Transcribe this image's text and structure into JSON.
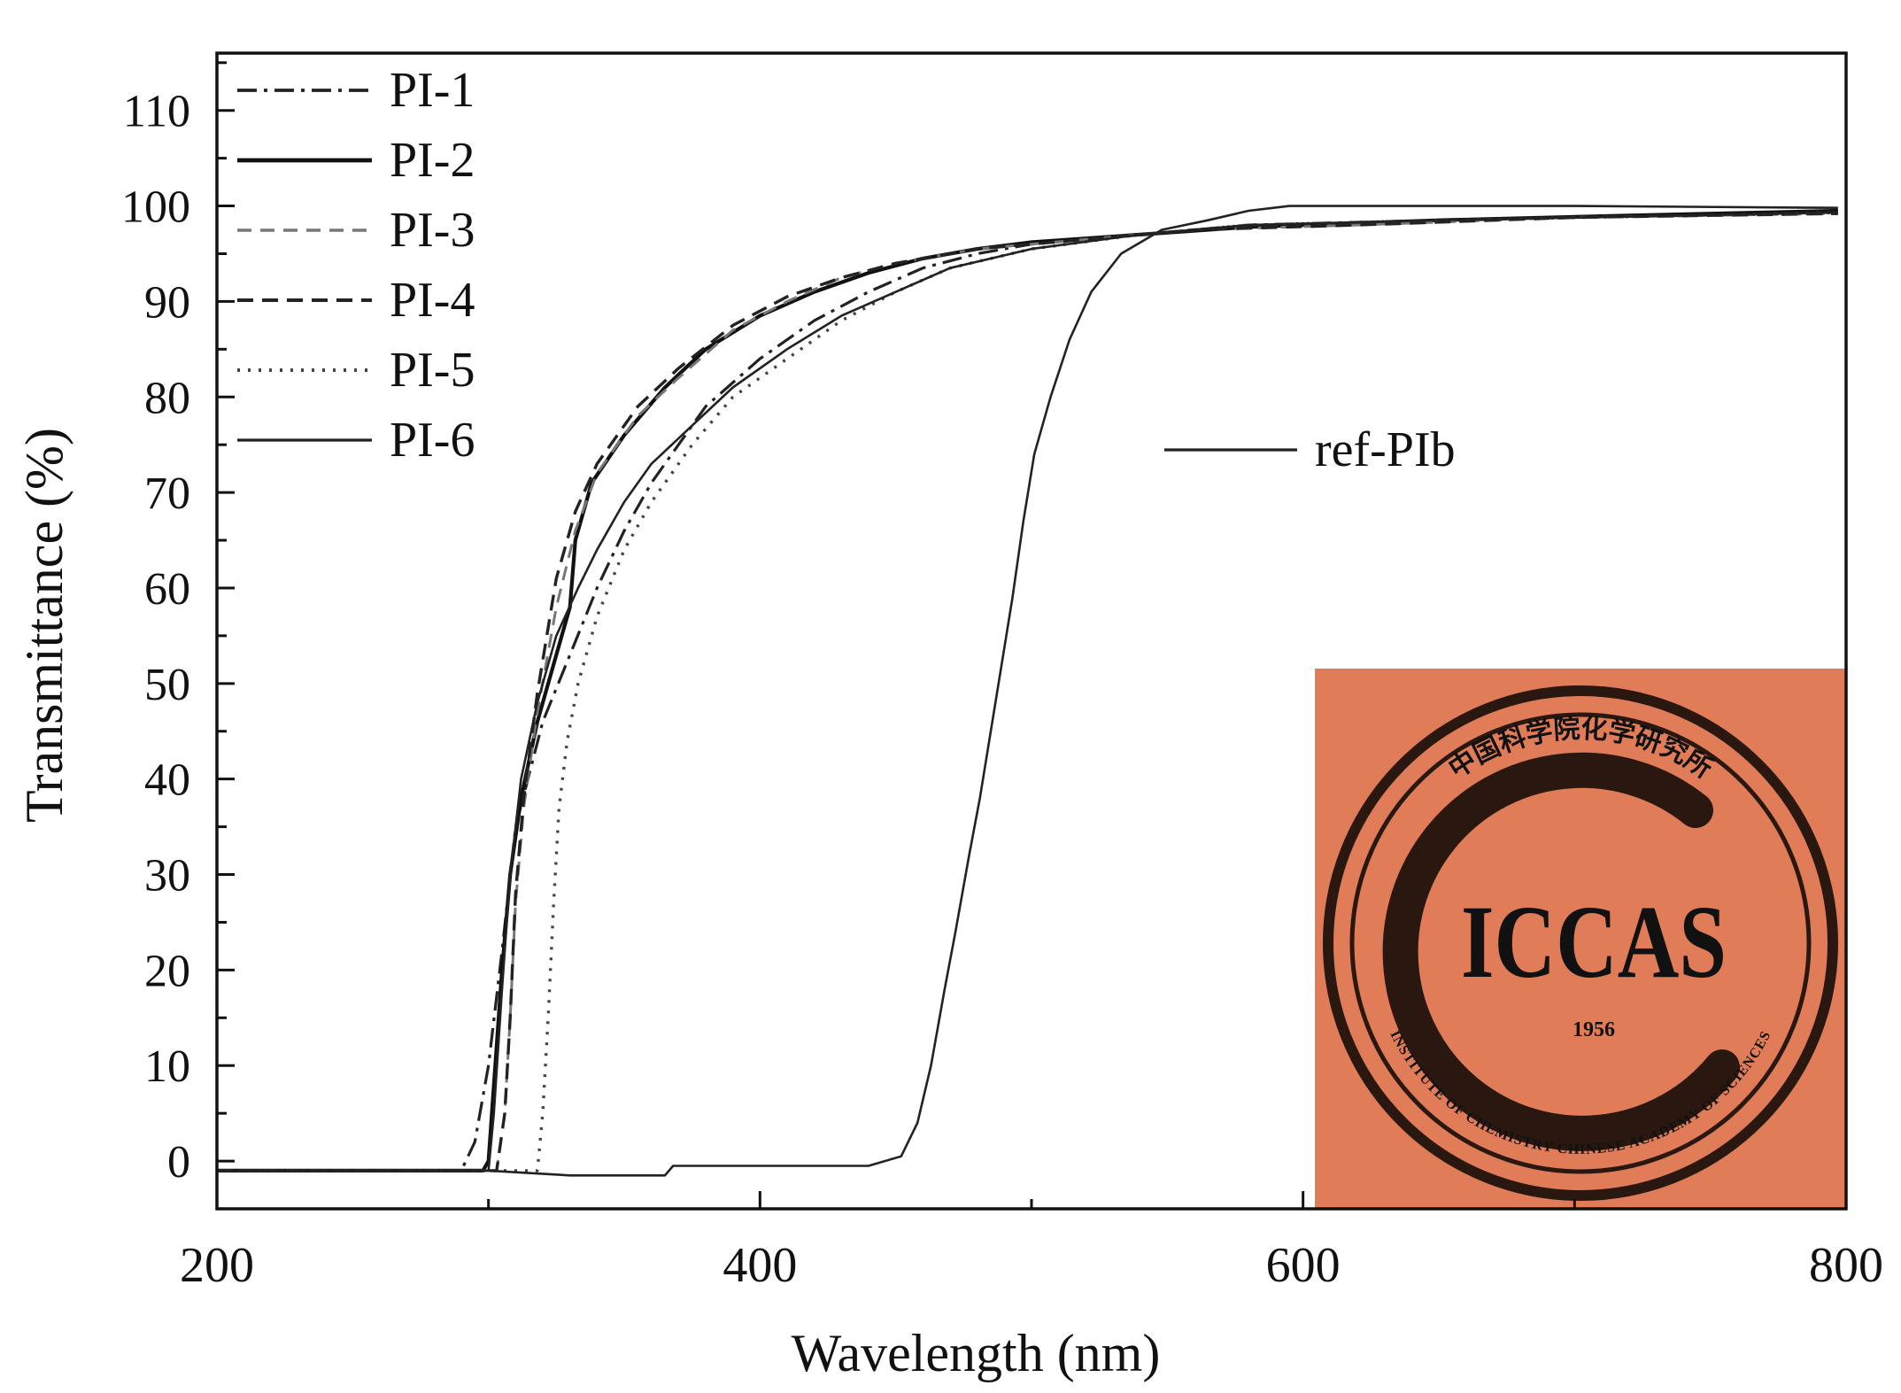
{
  "chart_data": {
    "type": "line",
    "xlabel": "Wavelength (nm)",
    "ylabel": "Transmittance (%)",
    "xlim": [
      200,
      800
    ],
    "ylim": [
      -5,
      116
    ],
    "x_ticks": [
      200,
      400,
      600,
      800
    ],
    "y_ticks": [
      0,
      10,
      20,
      30,
      40,
      50,
      60,
      70,
      80,
      90,
      100,
      110
    ],
    "grid": false,
    "legend_position": "top-left",
    "series": [
      {
        "name": "PI-1",
        "dash": "dashdot",
        "points": [
          [
            200,
            -1
          ],
          [
            290,
            -1
          ],
          [
            295,
            2
          ],
          [
            300,
            10
          ],
          [
            305,
            22
          ],
          [
            310,
            35
          ],
          [
            320,
            46
          ],
          [
            330,
            53
          ],
          [
            340,
            60
          ],
          [
            350,
            66
          ],
          [
            360,
            71
          ],
          [
            370,
            75
          ],
          [
            380,
            79
          ],
          [
            400,
            84
          ],
          [
            420,
            88
          ],
          [
            440,
            91
          ],
          [
            460,
            93.5
          ],
          [
            480,
            95
          ],
          [
            500,
            96
          ],
          [
            540,
            97
          ],
          [
            580,
            98
          ],
          [
            650,
            98.5
          ],
          [
            720,
            99
          ],
          [
            797,
            99.5
          ]
        ]
      },
      {
        "name": "PI-2",
        "dash": "solid",
        "points": [
          [
            200,
            -1
          ],
          [
            298,
            -1
          ],
          [
            300,
            0
          ],
          [
            302,
            8
          ],
          [
            305,
            20
          ],
          [
            308,
            30
          ],
          [
            312,
            38
          ],
          [
            318,
            46
          ],
          [
            325,
            53
          ],
          [
            330,
            58
          ],
          [
            332,
            65
          ],
          [
            338,
            71
          ],
          [
            350,
            76
          ],
          [
            365,
            81
          ],
          [
            380,
            85
          ],
          [
            400,
            88.5
          ],
          [
            420,
            91
          ],
          [
            440,
            93
          ],
          [
            460,
            94.5
          ],
          [
            480,
            95.5
          ],
          [
            500,
            96.2
          ],
          [
            540,
            97
          ],
          [
            580,
            97.8
          ],
          [
            650,
            98.5
          ],
          [
            720,
            99
          ],
          [
            797,
            99.5
          ]
        ]
      },
      {
        "name": "PI-3",
        "dash": "dashed-light",
        "points": [
          [
            200,
            -1
          ],
          [
            303,
            -1
          ],
          [
            306,
            5
          ],
          [
            308,
            15
          ],
          [
            310,
            27
          ],
          [
            313,
            37
          ],
          [
            318,
            47
          ],
          [
            325,
            58
          ],
          [
            332,
            66
          ],
          [
            340,
            72
          ],
          [
            355,
            78
          ],
          [
            370,
            82
          ],
          [
            390,
            87
          ],
          [
            410,
            90
          ],
          [
            430,
            92.5
          ],
          [
            450,
            94
          ],
          [
            480,
            95.5
          ],
          [
            520,
            96.5
          ],
          [
            560,
            97.5
          ],
          [
            620,
            98
          ],
          [
            700,
            98.8
          ],
          [
            797,
            99.2
          ]
        ]
      },
      {
        "name": "PI-4",
        "dash": "dashed",
        "points": [
          [
            200,
            -1
          ],
          [
            303,
            -1
          ],
          [
            306,
            5
          ],
          [
            308,
            15
          ],
          [
            310,
            28
          ],
          [
            313,
            38
          ],
          [
            318,
            49
          ],
          [
            325,
            61
          ],
          [
            332,
            68
          ],
          [
            340,
            73
          ],
          [
            355,
            79
          ],
          [
            370,
            83
          ],
          [
            390,
            87.5
          ],
          [
            410,
            90.5
          ],
          [
            430,
            92.5
          ],
          [
            450,
            94
          ],
          [
            480,
            95.5
          ],
          [
            520,
            96.5
          ],
          [
            560,
            97.5
          ],
          [
            620,
            98
          ],
          [
            700,
            98.8
          ],
          [
            797,
            99.2
          ]
        ]
      },
      {
        "name": "PI-5",
        "dash": "dotted",
        "points": [
          [
            200,
            -1
          ],
          [
            318,
            -1
          ],
          [
            320,
            5
          ],
          [
            322,
            15
          ],
          [
            324,
            27
          ],
          [
            326,
            37
          ],
          [
            329,
            44
          ],
          [
            333,
            50
          ],
          [
            340,
            57
          ],
          [
            350,
            64
          ],
          [
            360,
            69
          ],
          [
            375,
            75
          ],
          [
            390,
            80
          ],
          [
            410,
            84
          ],
          [
            430,
            88
          ],
          [
            450,
            91
          ],
          [
            470,
            93.5
          ],
          [
            500,
            95.5
          ],
          [
            540,
            97
          ],
          [
            580,
            98
          ],
          [
            650,
            98.5
          ],
          [
            797,
            99.3
          ]
        ]
      },
      {
        "name": "PI-6",
        "dash": "solid-thin",
        "points": [
          [
            200,
            -1
          ],
          [
            300,
            -1
          ],
          [
            302,
            5
          ],
          [
            305,
            18
          ],
          [
            308,
            30
          ],
          [
            312,
            40
          ],
          [
            318,
            48
          ],
          [
            325,
            55
          ],
          [
            333,
            60
          ],
          [
            340,
            64
          ],
          [
            350,
            69
          ],
          [
            360,
            73
          ],
          [
            375,
            77
          ],
          [
            390,
            81
          ],
          [
            410,
            85
          ],
          [
            430,
            88.5
          ],
          [
            450,
            91
          ],
          [
            470,
            93.5
          ],
          [
            500,
            95.5
          ],
          [
            540,
            97
          ],
          [
            580,
            98
          ],
          [
            650,
            98.5
          ],
          [
            797,
            99.3
          ]
        ]
      },
      {
        "name": "ref-PIb",
        "dash": "solid-thin",
        "points": [
          [
            200,
            -1
          ],
          [
            300,
            -1
          ],
          [
            330,
            -1.5
          ],
          [
            365,
            -1.5
          ],
          [
            368,
            -0.5
          ],
          [
            440,
            -0.5
          ],
          [
            452,
            0.5
          ],
          [
            458,
            4
          ],
          [
            463,
            10
          ],
          [
            468,
            18
          ],
          [
            472,
            24
          ],
          [
            477,
            32
          ],
          [
            481,
            38
          ],
          [
            485,
            45
          ],
          [
            489,
            52
          ],
          [
            493,
            59
          ],
          [
            497,
            67
          ],
          [
            501,
            74
          ],
          [
            507,
            80
          ],
          [
            514,
            86
          ],
          [
            522,
            91
          ],
          [
            533,
            95
          ],
          [
            548,
            97.5
          ],
          [
            565,
            98.5
          ],
          [
            580,
            99.5
          ],
          [
            595,
            100
          ],
          [
            700,
            100
          ],
          [
            797,
            99.8
          ]
        ]
      }
    ]
  },
  "inset": {
    "type": "logo",
    "abbr": "ICCAS",
    "year": "1956",
    "text_outer_top": "中国科学院化学研究所",
    "text_outer_bottom": "INSTITUTE OF CHEMISTRY CHINESE ACADEMY OF SCIENCES",
    "background_color": "#e07c58",
    "ink_color": "#2a1810"
  }
}
